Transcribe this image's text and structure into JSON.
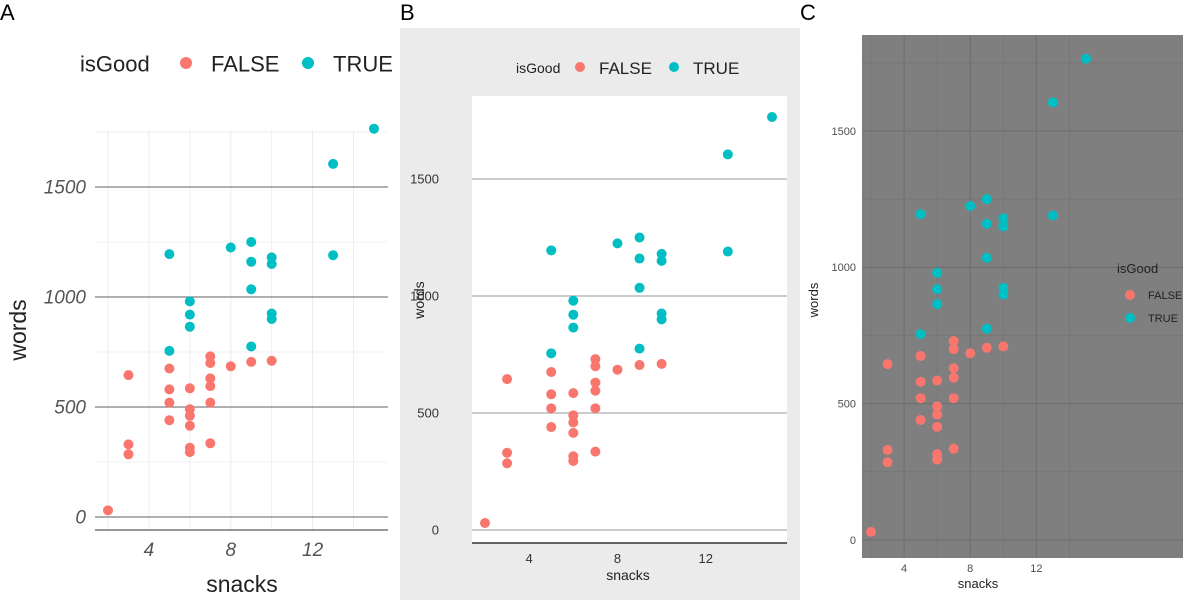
{
  "chart_data": [
    {
      "panel_label": "A",
      "type": "scatter",
      "xlabel": "snacks",
      "ylabel": "words",
      "xticks": [
        4,
        8,
        12
      ],
      "yticks": [
        0,
        500,
        1000,
        1500
      ],
      "xlim": [
        1.5,
        15.5
      ],
      "ylim": [
        -50,
        1850
      ],
      "grid": true,
      "legend_title": "isGood",
      "legend_position": "top",
      "series": [
        {
          "name": "FALSE",
          "color": "#F8766D",
          "points": [
            [
              2,
              30
            ],
            [
              3,
              645
            ],
            [
              3,
              330
            ],
            [
              3,
              285
            ],
            [
              5,
              675
            ],
            [
              5,
              580
            ],
            [
              5,
              520
            ],
            [
              5,
              440
            ],
            [
              6,
              585
            ],
            [
              6,
              490
            ],
            [
              6,
              460
            ],
            [
              6,
              415
            ],
            [
              6,
              315
            ],
            [
              6,
              295
            ],
            [
              7,
              730
            ],
            [
              7,
              700
            ],
            [
              7,
              630
            ],
            [
              7,
              595
            ],
            [
              7,
              520
            ],
            [
              7,
              335
            ],
            [
              8,
              685
            ],
            [
              9,
              705
            ],
            [
              10,
              710
            ]
          ]
        },
        {
          "name": "TRUE",
          "color": "#00BFC4",
          "points": [
            [
              5,
              1195
            ],
            [
              5,
              755
            ],
            [
              6,
              980
            ],
            [
              6,
              920
            ],
            [
              6,
              865
            ],
            [
              8,
              1225
            ],
            [
              9,
              1250
            ],
            [
              9,
              1160
            ],
            [
              9,
              1035
            ],
            [
              9,
              775
            ],
            [
              10,
              1180
            ],
            [
              10,
              1150
            ],
            [
              10,
              925
            ],
            [
              10,
              900
            ],
            [
              13,
              1605
            ],
            [
              13,
              1190
            ],
            [
              15,
              1765
            ]
          ]
        }
      ]
    },
    {
      "panel_label": "B",
      "type": "scatter",
      "xlabel": "snacks",
      "ylabel": "words",
      "xticks": [
        4,
        8,
        12
      ],
      "yticks": [
        0,
        500,
        1000,
        1500
      ],
      "xlim": [
        1.5,
        15.5
      ],
      "ylim": [
        -50,
        1850
      ],
      "grid": true,
      "legend_title": "isGood",
      "legend_position": "top",
      "series": [
        {
          "name": "FALSE",
          "color": "#F8766D",
          "points": [
            [
              2,
              30
            ],
            [
              3,
              645
            ],
            [
              3,
              330
            ],
            [
              3,
              285
            ],
            [
              5,
              675
            ],
            [
              5,
              580
            ],
            [
              5,
              520
            ],
            [
              5,
              440
            ],
            [
              6,
              585
            ],
            [
              6,
              490
            ],
            [
              6,
              460
            ],
            [
              6,
              415
            ],
            [
              6,
              315
            ],
            [
              6,
              295
            ],
            [
              7,
              730
            ],
            [
              7,
              700
            ],
            [
              7,
              630
            ],
            [
              7,
              595
            ],
            [
              7,
              520
            ],
            [
              7,
              335
            ],
            [
              8,
              685
            ],
            [
              9,
              705
            ],
            [
              10,
              710
            ]
          ]
        },
        {
          "name": "TRUE",
          "color": "#00BFC4",
          "points": [
            [
              5,
              1195
            ],
            [
              5,
              755
            ],
            [
              6,
              980
            ],
            [
              6,
              920
            ],
            [
              6,
              865
            ],
            [
              8,
              1225
            ],
            [
              9,
              1250
            ],
            [
              9,
              1160
            ],
            [
              9,
              1035
            ],
            [
              9,
              775
            ],
            [
              10,
              1180
            ],
            [
              10,
              1150
            ],
            [
              10,
              925
            ],
            [
              10,
              900
            ],
            [
              13,
              1605
            ],
            [
              13,
              1190
            ],
            [
              15,
              1765
            ]
          ]
        }
      ]
    },
    {
      "panel_label": "C",
      "type": "scatter",
      "xlabel": "snacks",
      "ylabel": "words",
      "xticks": [
        4,
        8,
        12
      ],
      "yticks": [
        0,
        500,
        1000,
        1500
      ],
      "xlim": [
        1.5,
        15.5
      ],
      "ylim": [
        -50,
        1850
      ],
      "grid": true,
      "legend_title": "isGood",
      "legend_position": "right",
      "series": [
        {
          "name": "FALSE",
          "color": "#F8766D",
          "points": [
            [
              2,
              30
            ],
            [
              3,
              645
            ],
            [
              3,
              330
            ],
            [
              3,
              285
            ],
            [
              5,
              675
            ],
            [
              5,
              580
            ],
            [
              5,
              520
            ],
            [
              5,
              440
            ],
            [
              6,
              585
            ],
            [
              6,
              490
            ],
            [
              6,
              460
            ],
            [
              6,
              415
            ],
            [
              6,
              315
            ],
            [
              6,
              295
            ],
            [
              7,
              730
            ],
            [
              7,
              700
            ],
            [
              7,
              630
            ],
            [
              7,
              595
            ],
            [
              7,
              520
            ],
            [
              7,
              335
            ],
            [
              8,
              685
            ],
            [
              9,
              705
            ],
            [
              10,
              710
            ]
          ]
        },
        {
          "name": "TRUE",
          "color": "#00BFC4",
          "points": [
            [
              5,
              1195
            ],
            [
              5,
              755
            ],
            [
              6,
              980
            ],
            [
              6,
              920
            ],
            [
              6,
              865
            ],
            [
              8,
              1225
            ],
            [
              9,
              1250
            ],
            [
              9,
              1160
            ],
            [
              9,
              1035
            ],
            [
              9,
              775
            ],
            [
              10,
              1180
            ],
            [
              10,
              1150
            ],
            [
              10,
              925
            ],
            [
              10,
              900
            ],
            [
              13,
              1605
            ],
            [
              13,
              1190
            ],
            [
              15,
              1765
            ]
          ]
        }
      ]
    }
  ]
}
